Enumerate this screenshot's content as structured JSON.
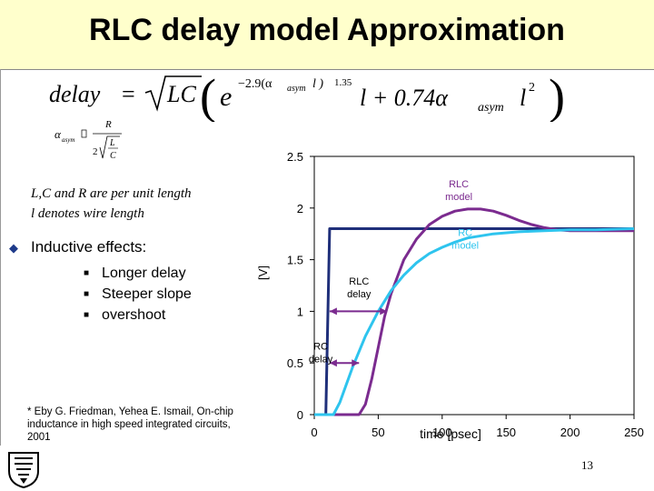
{
  "slide": {
    "title": "RLC delay model Approximation",
    "formula": {
      "lhs": "delay",
      "eq": "=",
      "sqrt_label": "LC",
      "exp_base": "e",
      "exponent": "−2.9(α",
      "exp_sub": "asym",
      "exp_tail": "l )",
      "power": "1.35",
      "term_l": "l + 0.74α",
      "term_sub": "asym",
      "term_l2": "l",
      "term_sq": "2"
    },
    "alpha_definition": {
      "alpha": "α",
      "sub": "asym",
      "box": "",
      "numerator": "R",
      "denominator_two": "2",
      "frac_L": "L",
      "frac_C": "C"
    },
    "notes": [
      "L,C and R  are per unit length",
      "l  denotes wire length"
    ],
    "bullet": "Inductive effects:",
    "subbullets": [
      "Longer delay",
      "Steeper slope",
      "overshoot"
    ],
    "footnote": "* Eby G. Friedman, Yehea E. Ismail, On-chip inductance in high speed integrated circuits, 2001",
    "slide_number": "13"
  },
  "colors": {
    "step": "#1f2f7a",
    "rlc": "#7b2b8f",
    "rc": "#2ec4ee",
    "title_bg": "#ffffcc"
  },
  "chart_data": {
    "type": "line",
    "xlabel": "time [psec]",
    "ylabel": "[V]",
    "xlim": [
      0,
      250
    ],
    "ylim": [
      0,
      2.5
    ],
    "xticks": [
      0,
      50,
      100,
      150,
      200,
      250
    ],
    "yticks": [
      0,
      0.5,
      1,
      1.5,
      2,
      2.5
    ],
    "ytick_labels": [
      "0",
      "0.5",
      "1",
      "1.5",
      "2",
      "2.5"
    ],
    "series": [
      {
        "key": "step",
        "x": [
          0,
          9,
          12,
          250
        ],
        "y": [
          0,
          0,
          1.8,
          1.8
        ]
      },
      {
        "key": "rlc_model",
        "x": [
          0,
          35,
          40,
          45,
          50,
          55,
          60,
          70,
          80,
          90,
          100,
          110,
          120,
          130,
          140,
          150,
          160,
          170,
          180,
          190,
          200,
          210,
          220,
          230,
          240,
          250
        ],
        "y": [
          0,
          0,
          0.1,
          0.35,
          0.65,
          0.95,
          1.17,
          1.5,
          1.7,
          1.84,
          1.92,
          1.97,
          1.99,
          1.99,
          1.97,
          1.93,
          1.88,
          1.84,
          1.81,
          1.79,
          1.78,
          1.78,
          1.78,
          1.78,
          1.78,
          1.78
        ]
      },
      {
        "key": "rc_model",
        "x": [
          0,
          15,
          20,
          30,
          40,
          50,
          60,
          70,
          80,
          90,
          100,
          110,
          120,
          140,
          160,
          180,
          200,
          220,
          250
        ],
        "y": [
          0,
          0,
          0.12,
          0.46,
          0.76,
          1.0,
          1.2,
          1.35,
          1.47,
          1.56,
          1.62,
          1.67,
          1.71,
          1.75,
          1.77,
          1.78,
          1.79,
          1.79,
          1.8
        ]
      }
    ],
    "annotations": [
      {
        "id": "rlc-model",
        "lines": [
          "RLC",
          "model"
        ],
        "x": 113,
        "y": 2.2,
        "color": "#7b2b8f"
      },
      {
        "id": "rc-model",
        "lines": [
          "RC",
          "model"
        ],
        "x": 118,
        "y": 1.73,
        "color": "#2ec4ee"
      },
      {
        "id": "rlc-delay",
        "lines": [
          "RLC",
          "delay"
        ],
        "x": 35,
        "y": 1.26,
        "color": "#000000"
      },
      {
        "id": "rc-delay",
        "lines": [
          "RC",
          "delay"
        ],
        "x": 5,
        "y": 0.63,
        "color": "#000000"
      }
    ],
    "delay_arrows": [
      {
        "id": "rlc-delay-arrow",
        "x0": 12,
        "x1": 57,
        "y": 1.0
      },
      {
        "id": "rc-delay-arrow",
        "x0": 12,
        "x1": 35,
        "y": 0.5
      }
    ]
  }
}
